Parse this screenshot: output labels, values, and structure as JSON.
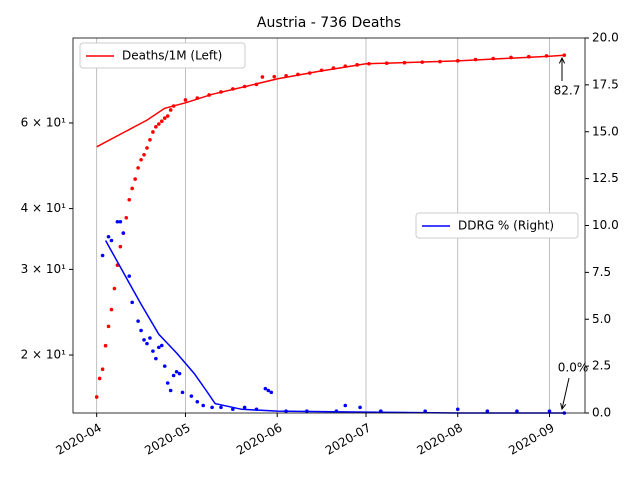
{
  "chart_data": {
    "type": "line",
    "title": "Austria - 736 Deaths",
    "xlim": [
      18345,
      18518
    ],
    "xticks": [
      {
        "value": 18353,
        "label": "2020-04"
      },
      {
        "value": 18383,
        "label": "2020-05"
      },
      {
        "value": 18414,
        "label": "2020-06"
      },
      {
        "value": 18444,
        "label": "2020-07"
      },
      {
        "value": 18475,
        "label": "2020-08"
      },
      {
        "value": 18506,
        "label": "2020-09"
      }
    ],
    "xgrid": true,
    "ylim": [
      15.2,
      89.7
    ],
    "ylog": true,
    "yticks": [
      {
        "value": 20,
        "label": "2 × 10¹"
      },
      {
        "value": 30,
        "label": "3 × 10¹"
      },
      {
        "value": 40,
        "label": "4 × 10¹"
      },
      {
        "value": 60,
        "label": "6 × 10¹"
      }
    ],
    "y2lim": [
      0,
      20
    ],
    "y2ticks": [
      {
        "value": 0,
        "label": "0.0"
      },
      {
        "value": 2.5,
        "label": "2.5"
      },
      {
        "value": 5,
        "label": "5.0"
      },
      {
        "value": 7.5,
        "label": "7.5"
      },
      {
        "value": 10,
        "label": "10.0"
      },
      {
        "value": 12.5,
        "label": "12.5"
      },
      {
        "value": 15,
        "label": "15.0"
      },
      {
        "value": 17.5,
        "label": "17.5"
      },
      {
        "value": 20,
        "label": "20.0"
      }
    ],
    "series": [
      {
        "name": "Deaths/1M (Left)",
        "color": "#ff0000",
        "style": "line",
        "legend": "upper left",
        "x": [
          18353,
          18370,
          18376,
          18383,
          18392,
          18402,
          18414,
          18428,
          18444,
          18475,
          18506,
          18511
        ],
        "values": [
          53.6,
          60.8,
          64.3,
          66,
          68.7,
          71,
          73.9,
          76.6,
          79.4,
          80.5,
          82.3,
          82.7
        ]
      },
      {
        "color": "#ff0000",
        "style": "points",
        "x": [
          18353,
          18354,
          18355,
          18356,
          18357,
          18358,
          18359,
          18360,
          18361,
          18362,
          18363,
          18364,
          18365,
          18366,
          18367,
          18368,
          18369,
          18370,
          18371,
          18372,
          18373,
          18374,
          18375,
          18376,
          18377,
          18378,
          18379,
          18383,
          18387,
          18391,
          18395,
          18399,
          18403,
          18407,
          18409,
          18413,
          18417,
          18421,
          18425,
          18429,
          18433,
          18437,
          18441,
          18445,
          18451,
          18457,
          18463,
          18469,
          18475,
          18481,
          18487,
          18493,
          18499,
          18505,
          18511
        ],
        "values": [
          16.4,
          17.9,
          18.7,
          20.9,
          22.9,
          24.8,
          27.4,
          30.6,
          33.4,
          35.6,
          38.3,
          41.7,
          44,
          46,
          48.5,
          50.4,
          51.6,
          53.3,
          55.4,
          57.5,
          58.9,
          59.7,
          60.5,
          61.4,
          62,
          63.8,
          65,
          66.9,
          67.5,
          68.5,
          69.5,
          70.5,
          71.3,
          72,
          74.6,
          74.7,
          75,
          75.5,
          76,
          77,
          77.8,
          78.5,
          79,
          79.4,
          79.6,
          79.8,
          80,
          80.2,
          80.5,
          81,
          81.4,
          81.8,
          82.1,
          82.4,
          82.7
        ]
      },
      {
        "name": "DDRG % (Right)",
        "color": "#0000ff",
        "style": "line",
        "axis": "y2",
        "legend": "center right",
        "x": [
          18356,
          18362,
          18368,
          18374,
          18380,
          18386,
          18390,
          18393,
          18402,
          18414,
          18444,
          18475,
          18511
        ],
        "values": [
          9.2,
          7.5,
          5.8,
          4.2,
          3.2,
          2.1,
          1.2,
          0.5,
          0.2,
          0.1,
          0.05,
          0,
          0
        ]
      },
      {
        "color": "#0000ff",
        "style": "points",
        "axis": "y2",
        "x": [
          18355,
          18357,
          18358,
          18360,
          18361,
          18362,
          18364,
          18365,
          18367,
          18368,
          18369,
          18370,
          18371,
          18372,
          18373,
          18374,
          18375,
          18376,
          18377,
          18378,
          18379,
          18380,
          18381,
          18382,
          18385,
          18387,
          18389,
          18392,
          18395,
          18399,
          18403,
          18407,
          18410,
          18411,
          18412,
          18417,
          18424,
          18434,
          18437,
          18442,
          18449,
          18464,
          18475,
          18485,
          18495,
          18506,
          18511
        ],
        "values": [
          8.4,
          9.4,
          9.2,
          10.2,
          10.2,
          9.6,
          7.3,
          5.9,
          4.9,
          4.4,
          3.9,
          3.7,
          4.0,
          3.3,
          2.9,
          3.5,
          3.6,
          2.5,
          1.6,
          1.2,
          2.0,
          2.2,
          2.1,
          1.1,
          0.9,
          0.6,
          0.4,
          0.3,
          0.3,
          0.2,
          0.3,
          0.2,
          1.3,
          1.2,
          1.1,
          0.1,
          0.1,
          0.1,
          0.4,
          0.3,
          0.1,
          0.1,
          0.2,
          0.1,
          0.1,
          0.1,
          0
        ]
      }
    ],
    "annotations": [
      "82.7",
      "0.0%"
    ]
  }
}
